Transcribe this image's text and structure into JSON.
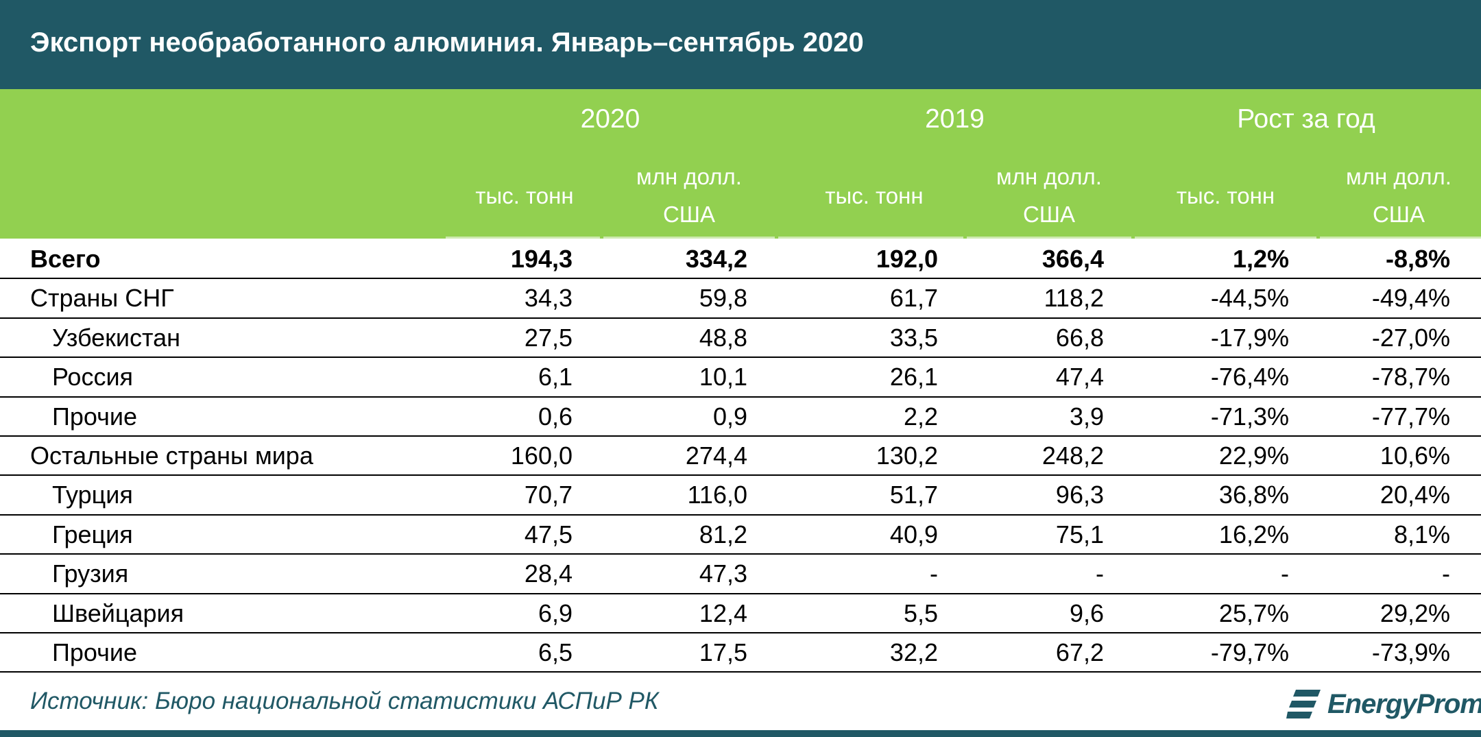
{
  "title": "Экспорт необработанного алюминия. Январь–сентябрь 2020",
  "header": {
    "groups": [
      "2020",
      "2019",
      "Рост за год"
    ],
    "units": [
      {
        "line1": "тыс. тонн",
        "line2": ""
      },
      {
        "line1": "млн долл.",
        "line2": "США"
      },
      {
        "line1": "тыс. тонн",
        "line2": ""
      },
      {
        "line1": "млн долл.",
        "line2": "США"
      },
      {
        "line1": "тыс. тонн",
        "line2": ""
      },
      {
        "line1": "млн долл.",
        "line2": "США"
      }
    ]
  },
  "rows": [
    {
      "label": "Всего",
      "indent": false,
      "bold": true,
      "values": [
        "194,3",
        "334,2",
        "192,0",
        "366,4",
        "1,2%",
        "-8,8%"
      ]
    },
    {
      "label": "Страны СНГ",
      "indent": false,
      "bold": false,
      "values": [
        "34,3",
        "59,8",
        "61,7",
        "118,2",
        "-44,5%",
        "-49,4%"
      ]
    },
    {
      "label": "Узбекистан",
      "indent": true,
      "bold": false,
      "values": [
        "27,5",
        "48,8",
        "33,5",
        "66,8",
        "-17,9%",
        "-27,0%"
      ]
    },
    {
      "label": "Россия",
      "indent": true,
      "bold": false,
      "values": [
        "6,1",
        "10,1",
        "26,1",
        "47,4",
        "-76,4%",
        "-78,7%"
      ]
    },
    {
      "label": "Прочие",
      "indent": true,
      "bold": false,
      "values": [
        "0,6",
        "0,9",
        "2,2",
        "3,9",
        "-71,3%",
        "-77,7%"
      ]
    },
    {
      "label": "Остальные страны мира",
      "indent": false,
      "bold": false,
      "values": [
        "160,0",
        "274,4",
        "130,2",
        "248,2",
        "22,9%",
        "10,6%"
      ]
    },
    {
      "label": "Турция",
      "indent": true,
      "bold": false,
      "values": [
        "70,7",
        "116,0",
        "51,7",
        "96,3",
        "36,8%",
        "20,4%"
      ]
    },
    {
      "label": "Греция",
      "indent": true,
      "bold": false,
      "values": [
        "47,5",
        "81,2",
        "40,9",
        "75,1",
        "16,2%",
        "8,1%"
      ]
    },
    {
      "label": "Грузия",
      "indent": true,
      "bold": false,
      "values": [
        "28,4",
        "47,3",
        "-",
        "-",
        "-",
        "-"
      ]
    },
    {
      "label": "Швейцария",
      "indent": true,
      "bold": false,
      "values": [
        "6,9",
        "12,4",
        "5,5",
        "9,6",
        "25,7%",
        "29,2%"
      ]
    },
    {
      "label": "Прочие",
      "indent": true,
      "bold": false,
      "values": [
        "6,5",
        "17,5",
        "32,2",
        "67,2",
        "-79,7%",
        "-73,9%"
      ]
    }
  ],
  "source": "Источник: Бюро национальной статистики АСПиР РК",
  "logo": {
    "text": "EnergyProm",
    "icon": "energyprom-logo-icon"
  },
  "colors": {
    "title_bg": "#205865",
    "header_bg": "#92d050",
    "header_text": "#ffffff"
  }
}
